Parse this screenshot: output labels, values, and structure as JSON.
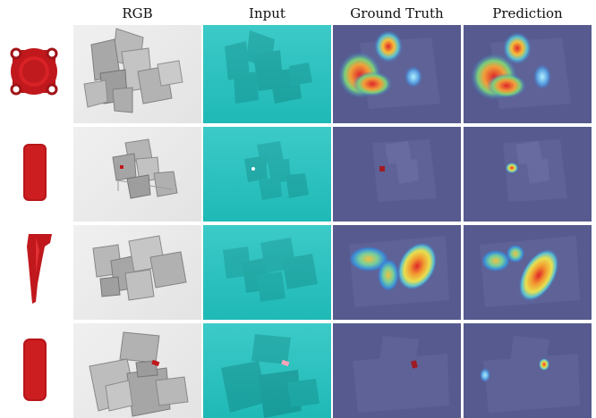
{
  "headers": {
    "rgb": "RGB",
    "input": "Input",
    "ground_truth": "Ground Truth",
    "prediction": "Prediction"
  },
  "colors": {
    "object_red": "#c0181c",
    "input_teal": "#27c1bf",
    "heatmap_bg": "#565a8e"
  },
  "rows": [
    {
      "object_icon": "red-flange-icon"
    },
    {
      "object_icon": "red-rounded-rectangle-icon"
    },
    {
      "object_icon": "red-spray-nozzle-icon"
    },
    {
      "object_icon": "red-rounded-rectangle-icon"
    }
  ]
}
